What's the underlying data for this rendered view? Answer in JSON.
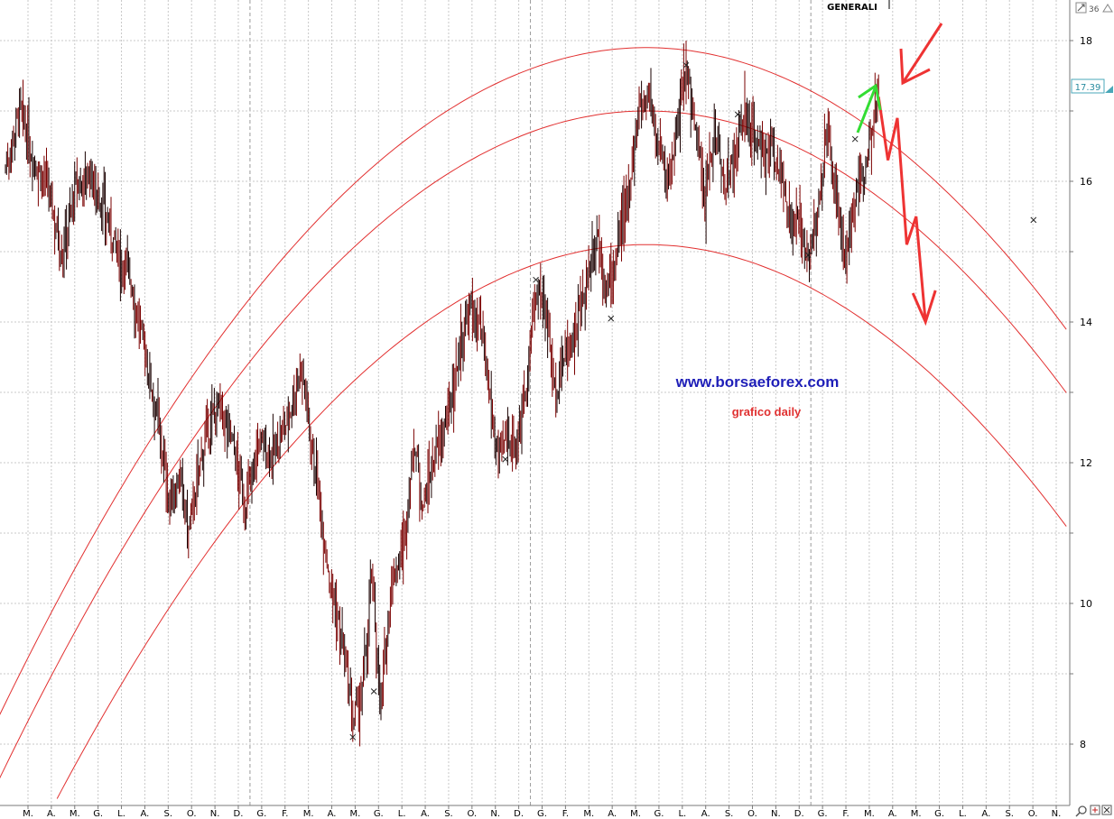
{
  "chart_data": {
    "type": "bar",
    "subtype": "daily price bars",
    "title": "GENERALI",
    "watermark": "www.borsaeforex.com",
    "subtitle": "grafico daily",
    "last_price": "17.39",
    "y_ticks": [
      "18",
      "16",
      "14",
      "12",
      "10",
      "8"
    ],
    "y_range": [
      7.25,
      18.35
    ],
    "x_ticks": [
      "M.",
      "A.",
      "M.",
      "G.",
      "L.",
      "A.",
      "S.",
      "O.",
      "N.",
      "D.",
      "G.",
      "F.",
      "M.",
      "A.",
      "M.",
      "G.",
      "L.",
      "A.",
      "S.",
      "O.",
      "N.",
      "D.",
      "G.",
      "F.",
      "M.",
      "A.",
      "M.",
      "G.",
      "L.",
      "A.",
      "S.",
      "O.",
      "N.",
      "D.",
      "G.",
      "F.",
      "M.",
      "A.",
      "M.",
      "G.",
      "L.",
      "A.",
      "S.",
      "O.",
      "N."
    ],
    "price_path": [
      [
        0,
        16.2
      ],
      [
        3,
        17.0
      ],
      [
        6,
        16.3
      ],
      [
        9,
        15.9
      ],
      [
        12,
        15.0
      ],
      [
        15,
        15.9
      ],
      [
        18,
        16.1
      ],
      [
        21,
        15.6
      ],
      [
        24,
        14.9
      ],
      [
        26,
        14.8
      ],
      [
        29,
        13.8
      ],
      [
        32,
        12.8
      ],
      [
        35,
        11.4
      ],
      [
        37,
        11.8
      ],
      [
        39,
        11.0
      ],
      [
        42,
        12.2
      ],
      [
        45,
        12.8
      ],
      [
        48,
        12.4
      ],
      [
        51,
        11.4
      ],
      [
        54,
        12.3
      ],
      [
        57,
        12.1
      ],
      [
        60,
        12.6
      ],
      [
        63,
        13.4
      ],
      [
        66,
        11.9
      ],
      [
        69,
        10.4
      ],
      [
        72,
        9.3
      ],
      [
        74,
        8.3
      ],
      [
        76,
        8.7
      ],
      [
        78,
        10.4
      ],
      [
        80,
        8.5
      ],
      [
        82,
        10.2
      ],
      [
        85,
        10.9
      ],
      [
        87,
        12.3
      ],
      [
        89,
        11.4
      ],
      [
        91,
        12.0
      ],
      [
        94,
        12.6
      ],
      [
        97,
        13.7
      ],
      [
        99,
        14.2
      ],
      [
        101,
        13.9
      ],
      [
        103,
        13.0
      ],
      [
        105,
        12.0
      ],
      [
        107,
        12.4
      ],
      [
        109,
        12.3
      ],
      [
        111,
        13.2
      ],
      [
        113,
        14.4
      ],
      [
        115,
        14.3
      ],
      [
        117,
        13.0
      ],
      [
        119,
        13.5
      ],
      [
        121,
        13.8
      ],
      [
        123,
        14.3
      ],
      [
        126,
        15.3
      ],
      [
        128,
        14.4
      ],
      [
        130,
        14.9
      ],
      [
        132,
        15.6
      ],
      [
        135,
        17.0
      ],
      [
        137,
        17.3
      ],
      [
        139,
        16.5
      ],
      [
        141,
        16.0
      ],
      [
        143,
        16.7
      ],
      [
        145,
        17.6
      ],
      [
        147,
        16.7
      ],
      [
        149,
        15.7
      ],
      [
        151,
        16.8
      ],
      [
        153,
        16.0
      ],
      [
        155,
        16.2
      ],
      [
        157,
        16.9
      ],
      [
        159,
        16.8
      ],
      [
        161,
        16.3
      ],
      [
        163,
        16.5
      ],
      [
        165,
        16.2
      ],
      [
        167,
        15.3
      ],
      [
        169,
        15.4
      ],
      [
        171,
        15.0
      ],
      [
        173,
        15.5
      ],
      [
        175,
        16.7
      ],
      [
        177,
        15.8
      ],
      [
        179,
        14.7
      ],
      [
        181,
        15.8
      ],
      [
        183,
        16.2
      ],
      [
        185,
        17.0
      ],
      [
        186,
        17.39
      ]
    ],
    "parabolic_channel": {
      "upper_vertex": [
        136.5,
        17.9
      ],
      "middle_vertex": [
        136.5,
        17.0
      ],
      "lower_vertex": [
        136.5,
        15.1
      ],
      "curvature": 0.0005
    },
    "projection_arrow_path": [
      [
        186,
        17.2
      ],
      [
        188,
        16.3
      ],
      [
        190,
        16.9
      ],
      [
        192,
        15.1
      ],
      [
        194,
        15.5
      ],
      [
        196,
        14.0
      ]
    ]
  }
}
